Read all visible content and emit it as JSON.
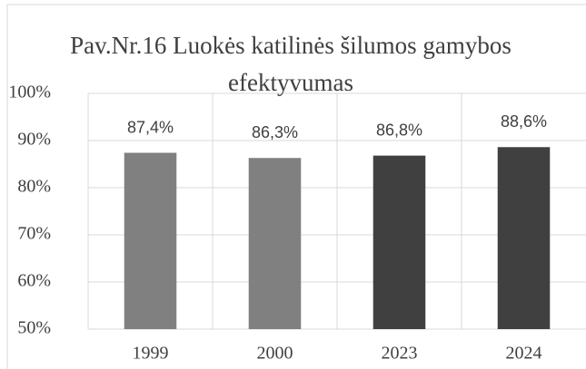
{
  "chart_data": {
    "type": "bar",
    "title": "Pav.Nr.16 Luokės katilinės šilumos gamybos efektyvumas",
    "categories": [
      "1999",
      "2000",
      "2023",
      "2024"
    ],
    "values": [
      87.4,
      86.3,
      86.8,
      88.6
    ],
    "value_labels": [
      "87,4%",
      "86,3%",
      "86,8%",
      "88,6%"
    ],
    "colors": [
      "#808080",
      "#808080",
      "#404040",
      "#404040"
    ],
    "ylim": [
      50,
      100
    ],
    "yticks": [
      {
        "value": 50,
        "label": "50%"
      },
      {
        "value": 60,
        "label": "60%"
      },
      {
        "value": 70,
        "label": "70%"
      },
      {
        "value": 80,
        "label": "80%"
      },
      {
        "value": 90,
        "label": "90%"
      },
      {
        "value": 100,
        "label": "100%"
      }
    ],
    "grid": true
  }
}
